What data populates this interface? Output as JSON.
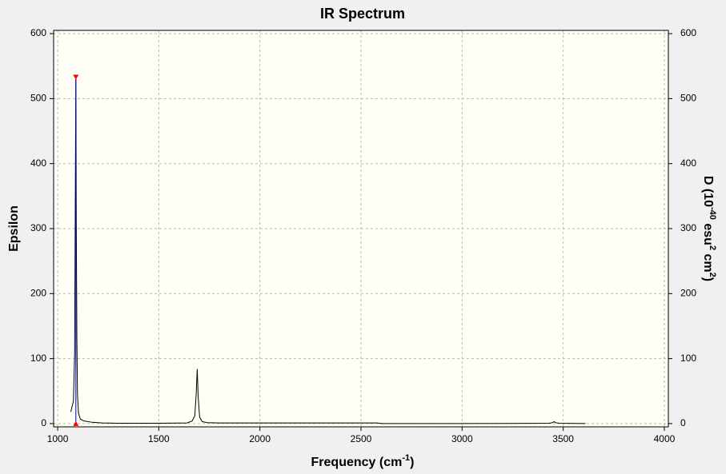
{
  "chart_data": {
    "type": "line",
    "title": "IR Spectrum",
    "xlabel": [
      "Frequency (cm",
      "-1",
      ")"
    ],
    "ylabel": "Epsilon",
    "y2label": [
      "D (10",
      "-40",
      " esu",
      "2",
      " cm",
      "2",
      ")"
    ],
    "xlim": [
      980,
      4020
    ],
    "ylim": [
      -5,
      605
    ],
    "y2lim": [
      -5,
      605
    ],
    "xticks": [
      1000,
      1500,
      2000,
      2500,
      3000,
      3500,
      4000
    ],
    "yticks": [
      0,
      100,
      200,
      300,
      400,
      500,
      600
    ],
    "y2ticks": [
      0,
      100,
      200,
      300,
      400,
      500,
      600
    ],
    "grid": true,
    "series": [
      {
        "color": "#000000",
        "x": [
          1065,
          1078,
          1084,
          1088,
          1090,
          1092,
          1095,
          1098,
          1103,
          1112,
          1130,
          1170,
          1220,
          1300,
          1500,
          1640,
          1665,
          1678,
          1685,
          1690,
          1695,
          1702,
          1715,
          1740,
          1800,
          2200,
          2580,
          2600,
          3000,
          3430,
          3448,
          3455,
          3462,
          3480,
          3610
        ],
        "values": [
          18,
          35,
          110,
          400,
          530,
          310,
          130,
          45,
          16,
          7,
          4,
          2,
          1,
          0.5,
          0.5,
          1,
          4,
          12,
          45,
          84,
          40,
          10,
          3,
          1.5,
          1,
          1,
          1,
          0,
          0,
          0.5,
          1.5,
          3,
          1.5,
          0.5,
          0
        ]
      }
    ],
    "sticks": {
      "color": "#00008b",
      "marker_color": "#ff0000",
      "x": [
        1090
      ],
      "values": [
        533
      ]
    }
  }
}
